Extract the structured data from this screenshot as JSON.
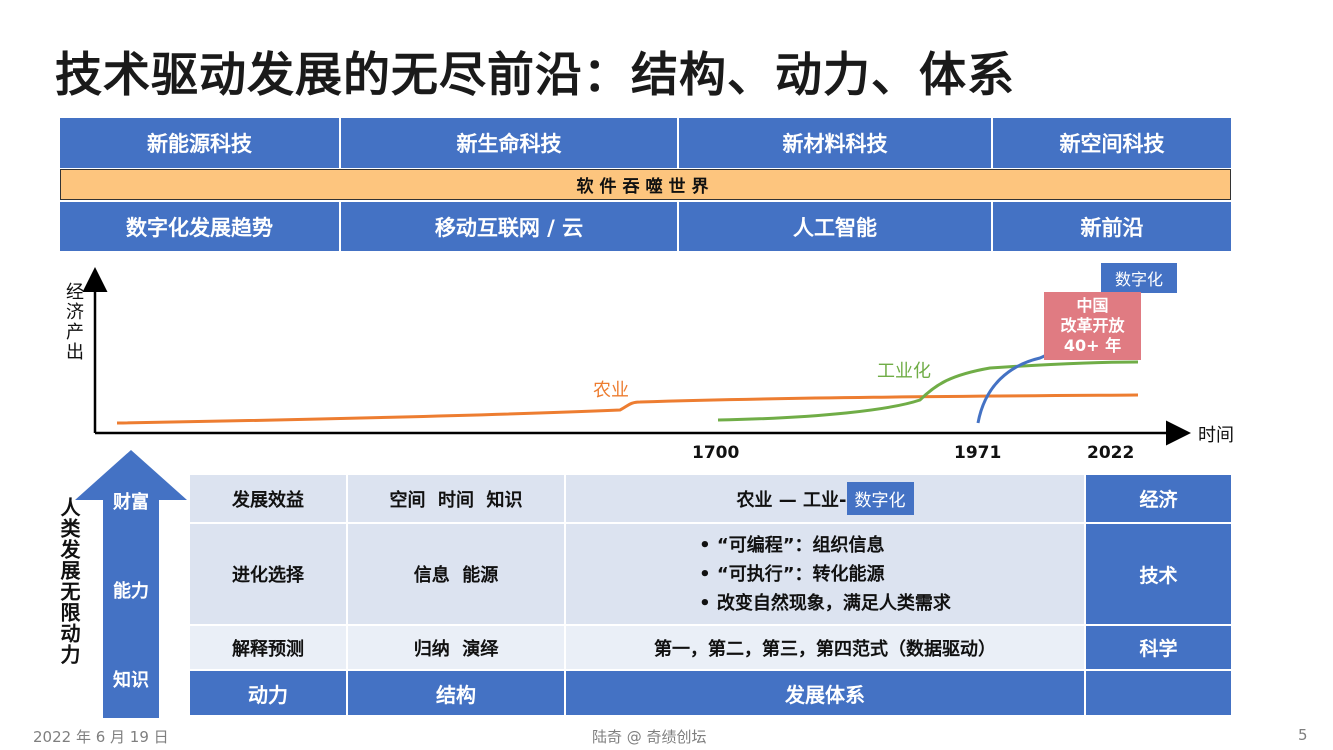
{
  "title": "技术驱动发展的无尽前沿：结构、动力、体系",
  "top_row": [
    "新能源科技",
    "新生命科技",
    "新材料科技",
    "新空间科技"
  ],
  "band": "软件吞噬世界",
  "second_row": [
    "数字化发展趋势",
    "移动互联网 / 云",
    "人工智能",
    "新前沿"
  ],
  "chart": {
    "ylabel": "经济产出",
    "xlabel": "时间",
    "ticks": [
      "1700",
      "1971",
      "2022"
    ],
    "curves": {
      "agriculture": {
        "label": "农业",
        "color": "#ed7d31"
      },
      "industry": {
        "label": "工业化",
        "color": "#70ad47"
      },
      "digital": {
        "label": "数字化",
        "color": "#4472c4"
      }
    },
    "china_box": [
      "中国",
      "改革开放",
      "40+ 年"
    ],
    "china_box_color": "#e07b82"
  },
  "left_axis": {
    "label": "人类发展无限动力",
    "arrow_levels": [
      "财富",
      "能力",
      "知识"
    ]
  },
  "table": {
    "rows": [
      {
        "col1": "发展效益",
        "col2": "空间  时间  知识",
        "col3": "农业 — 工业-",
        "col3_tag": "数字化",
        "col4": "经济"
      },
      {
        "col1": "进化选择",
        "col2": "信息  能源",
        "col3_bullets": [
          "•  “可编程”：组织信息",
          "•  “可执行”：转化能源",
          "• 改变自然现象，满足人类需求"
        ],
        "col4": "技术"
      },
      {
        "col1": "解释预测",
        "col2": "归纳  演绎",
        "col3": "第一，第二，第三，第四范式（数据驱动）",
        "col4": "科学"
      }
    ],
    "footer": [
      "动力",
      "结构",
      "发展体系",
      ""
    ]
  },
  "footer": {
    "date": "2022 年 6 月 19 日",
    "author": "陆奇 @ 奇绩创坛",
    "page": "5"
  }
}
